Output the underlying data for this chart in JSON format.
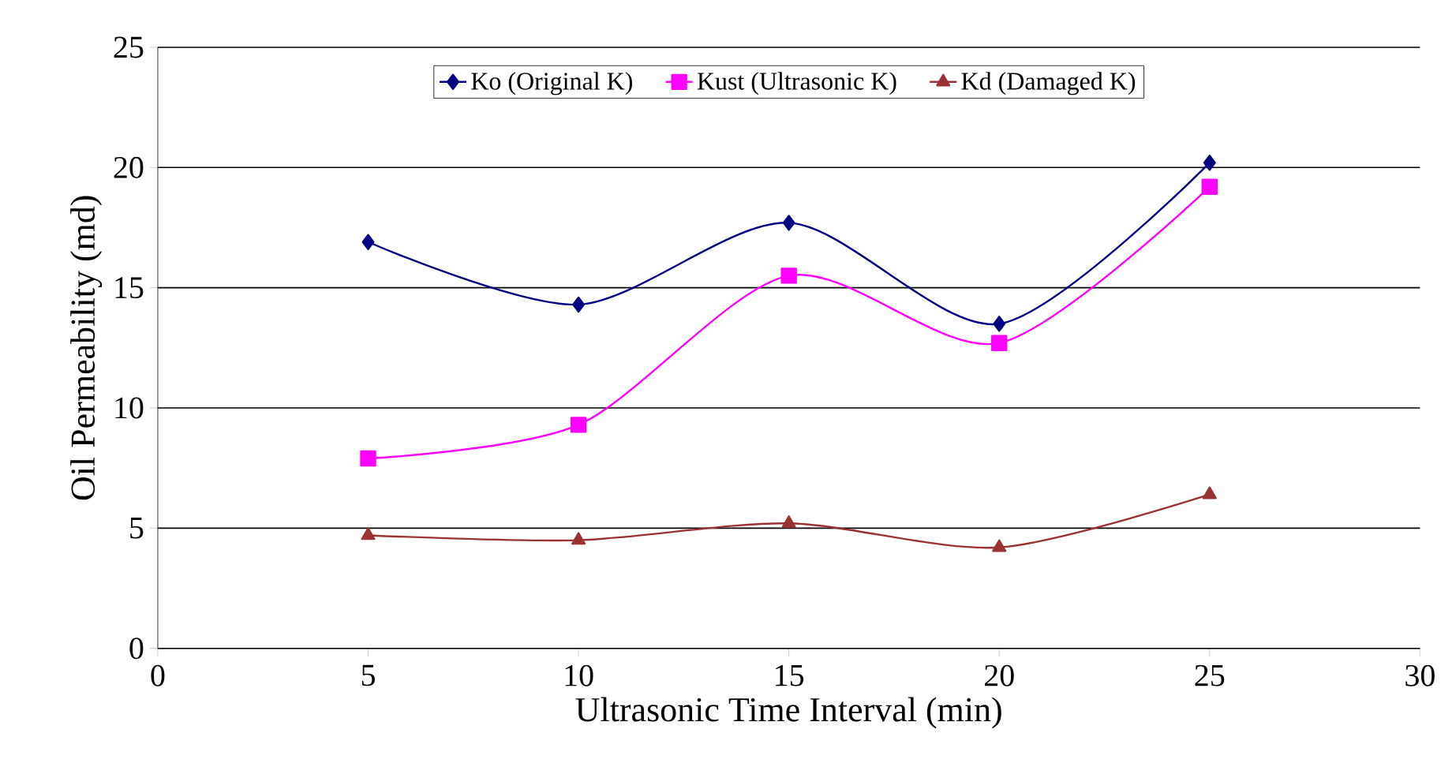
{
  "chart_data": {
    "type": "line",
    "xlabel": "Ultrasonic Time Interval (min)",
    "ylabel": "Oil Permeability (md)",
    "x": [
      5,
      10,
      15,
      20,
      25
    ],
    "series": [
      {
        "name": "Ko (Original K)",
        "color": "#000080",
        "marker": "diamond",
        "values": [
          16.9,
          14.3,
          17.7,
          13.5,
          20.2
        ]
      },
      {
        "name": "Kust (Ultrasonic K)",
        "color": "#ff00ff",
        "marker": "square",
        "values": [
          7.9,
          9.3,
          15.5,
          12.7,
          19.2
        ]
      },
      {
        "name": "Kd (Damaged K)",
        "color": "#993333",
        "marker": "triangle",
        "values": [
          4.7,
          4.5,
          5.2,
          4.2,
          6.4
        ]
      }
    ],
    "xlim": [
      0,
      30
    ],
    "xticks": [
      0,
      5,
      10,
      15,
      20,
      25,
      30
    ],
    "ylim": [
      0,
      25
    ],
    "yticks": [
      0,
      5,
      10,
      15,
      20,
      25
    ],
    "grid": "y",
    "legend": "top",
    "line_style": "solid"
  }
}
